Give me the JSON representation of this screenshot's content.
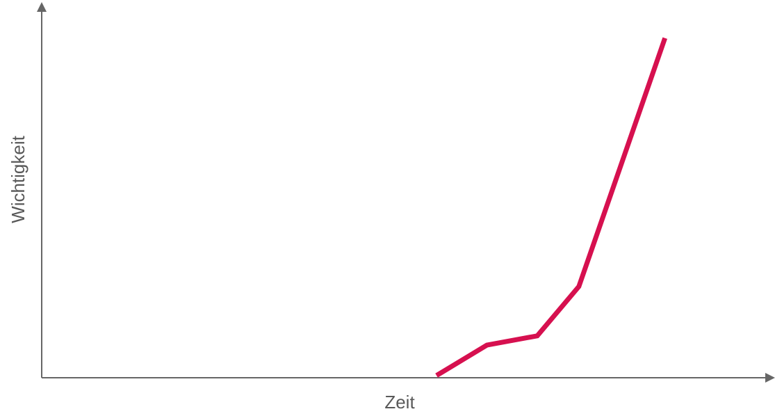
{
  "chart_data": {
    "type": "line",
    "x_label": "Zeit",
    "y_label": "Wichtigkeit",
    "x": [
      54.1,
      61.0,
      67.9,
      73.6,
      85.4
    ],
    "series": [
      {
        "color": "#d6104f",
        "values": [
          0.6,
          8.8,
          11.3,
          24.6,
          91.6
        ]
      }
    ],
    "xlim": [
      0,
      100
    ],
    "ylim": [
      0,
      100
    ]
  }
}
